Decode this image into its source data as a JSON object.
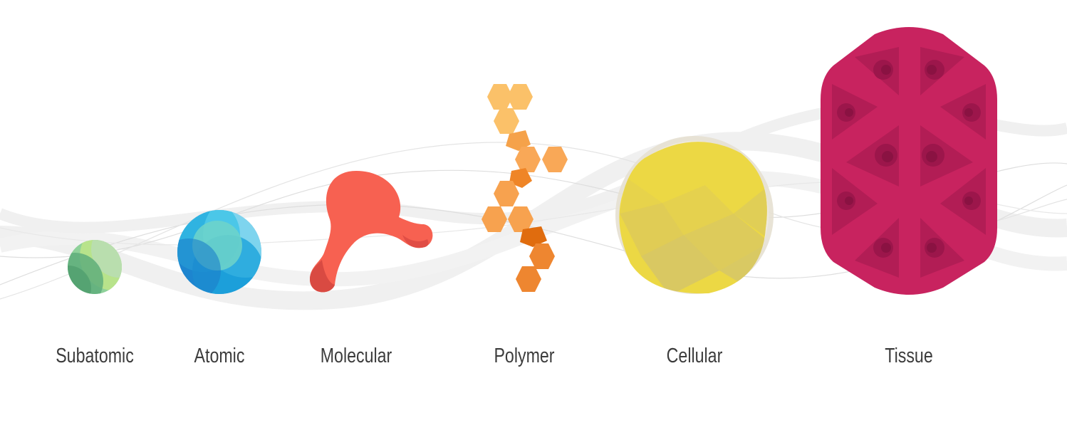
{
  "scales": [
    {
      "id": "subatomic",
      "label": "Subatomic"
    },
    {
      "id": "atomic",
      "label": "Atomic"
    },
    {
      "id": "molecular",
      "label": "Molecular"
    },
    {
      "id": "polymer",
      "label": "Polymer"
    },
    {
      "id": "cellular",
      "label": "Cellular"
    },
    {
      "id": "tissue",
      "label": "Tissue"
    }
  ],
  "colors": {
    "subatomic": "#7dbf8e",
    "atomic": "#2aa7e0",
    "molecular": "#f56050",
    "polymer": "#f59a3c",
    "cellular": "#ecd84a",
    "tissue": "#c8235f",
    "wave": "#e9e9e9",
    "label": "#3c3c3c"
  }
}
